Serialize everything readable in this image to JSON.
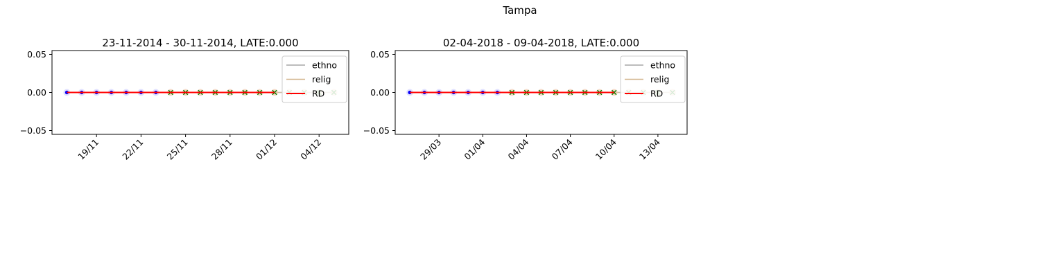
{
  "figure": {
    "suptitle": "Tampa"
  },
  "chart_data": [
    {
      "type": "line",
      "title": "23-11-2014 - 30-11-2014, LATE:0.000",
      "xlabel": "",
      "ylabel": "",
      "x_axis_type": "date",
      "xlim": [
        "2014-11-16",
        "2014-12-06"
      ],
      "ylim": [
        -0.055,
        0.055
      ],
      "yticks": [
        -0.05,
        0.0,
        0.05
      ],
      "ytick_labels": [
        "−0.05",
        "0.00",
        "0.05"
      ],
      "xticks": [
        "2014-11-19",
        "2014-11-22",
        "2014-11-25",
        "2014-11-28",
        "2014-12-01",
        "2014-12-04"
      ],
      "xtick_labels": [
        "19/11",
        "22/11",
        "25/11",
        "28/11",
        "01/12",
        "04/12"
      ],
      "grid": false,
      "legend_position": "upper right",
      "legend": [
        {
          "label": "ethno",
          "color": "#a6a6a6"
        },
        {
          "label": "relig",
          "color": "#d2b48c"
        },
        {
          "label": "RD",
          "color": "#ff0000"
        }
      ],
      "pre_period": {
        "x": [
          "2014-11-17",
          "2014-11-18",
          "2014-11-19",
          "2014-11-20",
          "2014-11-21",
          "2014-11-22",
          "2014-11-23"
        ],
        "y": [
          0,
          0,
          0,
          0,
          0,
          0,
          0
        ],
        "color": "#0000ff"
      },
      "post_period": {
        "x": [
          "2014-11-24",
          "2014-11-25",
          "2014-11-26",
          "2014-11-27",
          "2014-11-28",
          "2014-11-29",
          "2014-11-30",
          "2014-12-01",
          "2014-12-02",
          "2014-12-03",
          "2014-12-04",
          "2014-12-05"
        ],
        "y": [
          0,
          0,
          0,
          0,
          0,
          0,
          0,
          0,
          0,
          0,
          0,
          0
        ],
        "color": "#008000"
      },
      "series": [
        {
          "name": "ethno",
          "x": [
            "2014-11-17",
            "2014-12-05"
          ],
          "values": [
            0,
            0
          ],
          "color": "#a6a6a6"
        },
        {
          "name": "relig",
          "x": [
            "2014-11-17",
            "2014-12-05"
          ],
          "values": [
            0,
            0
          ],
          "color": "#d2b48c"
        },
        {
          "name": "RD",
          "x": [
            "2014-11-17",
            "2014-12-01"
          ],
          "values": [
            0,
            0
          ],
          "color": "#ff0000"
        }
      ]
    },
    {
      "type": "line",
      "title": "02-04-2018 - 09-04-2018, LATE:0.000",
      "xlabel": "",
      "ylabel": "",
      "x_axis_type": "date",
      "xlim": [
        "2018-03-26",
        "2018-04-15"
      ],
      "ylim": [
        -0.055,
        0.055
      ],
      "yticks": [
        -0.05,
        0.0,
        0.05
      ],
      "ytick_labels": [
        "−0.05",
        "0.00",
        "0.05"
      ],
      "xticks": [
        "2018-03-29",
        "2018-04-01",
        "2018-04-04",
        "2018-04-07",
        "2018-04-10",
        "2018-04-13"
      ],
      "xtick_labels": [
        "29/03",
        "01/04",
        "04/04",
        "07/04",
        "10/04",
        "13/04"
      ],
      "grid": false,
      "legend_position": "upper right",
      "legend": [
        {
          "label": "ethno",
          "color": "#a6a6a6"
        },
        {
          "label": "relig",
          "color": "#d2b48c"
        },
        {
          "label": "RD",
          "color": "#ff0000"
        }
      ],
      "pre_period": {
        "x": [
          "2018-03-27",
          "2018-03-28",
          "2018-03-29",
          "2018-03-30",
          "2018-03-31",
          "2018-04-01",
          "2018-04-02"
        ],
        "y": [
          0,
          0,
          0,
          0,
          0,
          0,
          0
        ],
        "color": "#0000ff"
      },
      "post_period": {
        "x": [
          "2018-04-03",
          "2018-04-04",
          "2018-04-05",
          "2018-04-06",
          "2018-04-07",
          "2018-04-08",
          "2018-04-09",
          "2018-04-10",
          "2018-04-11",
          "2018-04-12",
          "2018-04-13",
          "2018-04-14"
        ],
        "y": [
          0,
          0,
          0,
          0,
          0,
          0,
          0,
          0,
          0,
          0,
          0,
          0
        ],
        "color": "#008000"
      },
      "series": [
        {
          "name": "ethno",
          "x": [
            "2018-03-27",
            "2018-04-14"
          ],
          "values": [
            0,
            0
          ],
          "color": "#a6a6a6"
        },
        {
          "name": "relig",
          "x": [
            "2018-03-27",
            "2018-04-14"
          ],
          "values": [
            0,
            0
          ],
          "color": "#d2b48c"
        },
        {
          "name": "RD",
          "x": [
            "2018-03-27",
            "2018-04-10"
          ],
          "values": [
            0,
            0
          ],
          "color": "#ff0000"
        }
      ]
    }
  ]
}
